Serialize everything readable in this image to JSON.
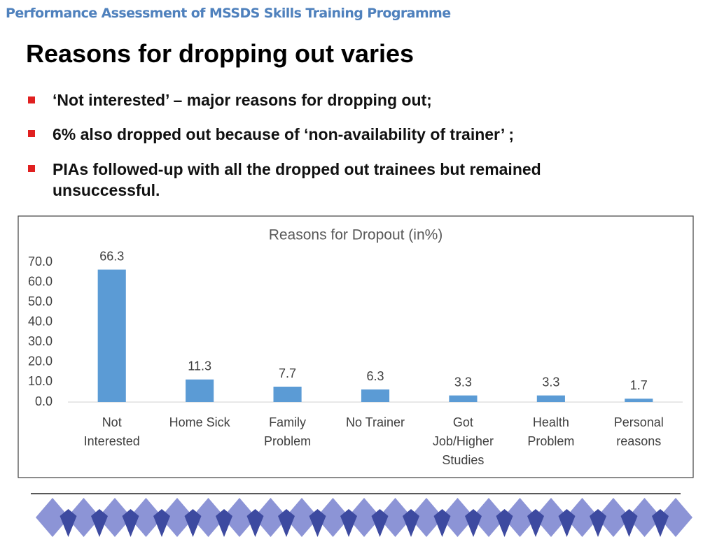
{
  "header": {
    "title": "Performance Assessment of MSSDS Skills Training Programme"
  },
  "slide": {
    "title": "Reasons for dropping out varies",
    "bullets": [
      "‘Not interested’ – major reasons for dropping out;",
      "6% also dropped out because of ‘non-availability of trainer’ ;",
      "PIAs followed-up with all the dropped out trainees but remained unsuccessful."
    ]
  },
  "chart_data": {
    "type": "bar",
    "title": "Reasons for Dropout (in%)",
    "categories": [
      "Not Interested",
      "Home Sick",
      "Family Problem",
      "No Trainer",
      "Got Job/Higher Studies",
      "Health Problem",
      "Personal reasons"
    ],
    "values": [
      66.3,
      11.3,
      7.7,
      6.3,
      3.3,
      3.3,
      1.7
    ],
    "color": "#5b9bd5",
    "ylim": [
      0,
      70
    ],
    "yticks": [
      {
        "value": 0,
        "label": "0.0"
      },
      {
        "value": 10,
        "label": "10.0"
      },
      {
        "value": 20,
        "label": "20.0"
      },
      {
        "value": 30,
        "label": "30.0"
      },
      {
        "value": 40,
        "label": "40.0"
      },
      {
        "value": 50,
        "label": "50.0"
      },
      {
        "value": 60,
        "label": "60.0"
      },
      {
        "value": 70,
        "label": "70.0"
      }
    ],
    "grid": false
  }
}
